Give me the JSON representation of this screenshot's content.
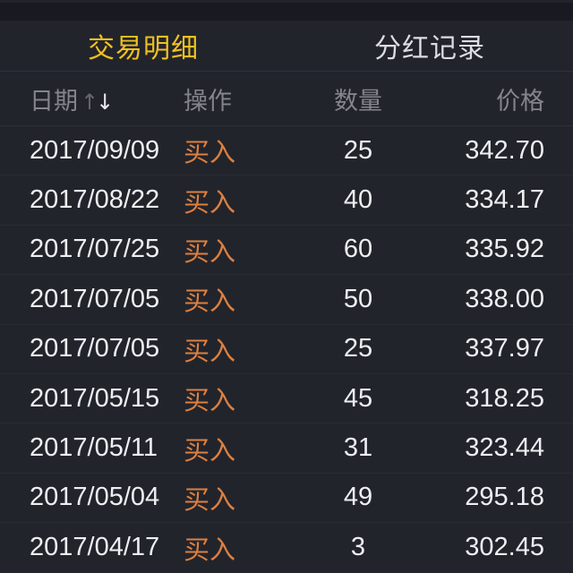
{
  "tabs": [
    {
      "label": "交易明细",
      "active": true
    },
    {
      "label": "分红记录",
      "active": false
    }
  ],
  "table": {
    "headers": {
      "date": "日期",
      "action": "操作",
      "quantity": "数量",
      "price": "价格"
    },
    "sort": {
      "column": "日期",
      "direction": "desc",
      "up_glyph": "↑",
      "down_glyph": "↓"
    },
    "rows": [
      {
        "date": "2017/09/09",
        "action": "买入",
        "quantity": "25",
        "price": "342.70"
      },
      {
        "date": "2017/08/22",
        "action": "买入",
        "quantity": "40",
        "price": "334.17"
      },
      {
        "date": "2017/07/25",
        "action": "买入",
        "quantity": "60",
        "price": "335.92"
      },
      {
        "date": "2017/07/05",
        "action": "买入",
        "quantity": "50",
        "price": "338.00"
      },
      {
        "date": "2017/07/05",
        "action": "买入",
        "quantity": "25",
        "price": "337.97"
      },
      {
        "date": "2017/05/15",
        "action": "买入",
        "quantity": "45",
        "price": "318.25"
      },
      {
        "date": "2017/05/11",
        "action": "买入",
        "quantity": "31",
        "price": "323.44"
      },
      {
        "date": "2017/05/04",
        "action": "买入",
        "quantity": "49",
        "price": "295.18"
      },
      {
        "date": "2017/04/17",
        "action": "买入",
        "quantity": "3",
        "price": "302.45"
      }
    ]
  },
  "colors": {
    "background": "#22242c",
    "top_band": "#191a21",
    "tab_active": "#eec120",
    "tab_inactive": "#dcdde1",
    "header_text": "#84858c",
    "row_text": "#edeff1",
    "buy_action": "#dc8040",
    "divider": "#2f313a",
    "row_divider": "#2a2c33"
  }
}
